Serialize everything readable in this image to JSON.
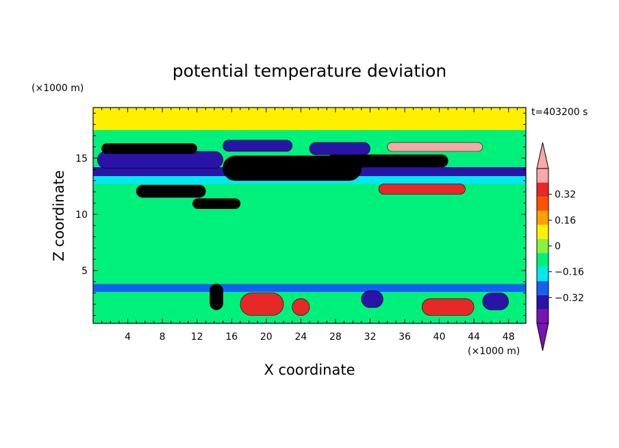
{
  "chart_data": {
    "type": "heatmap",
    "title": "potential temperature deviation",
    "xlabel": "X coordinate",
    "ylabel": "Z coordinate",
    "x_unit": "(×1000 m)",
    "y_unit": "(×1000 m)",
    "time_label": "t=403200 s",
    "xlim": [
      0,
      50
    ],
    "ylim": [
      0.3,
      19.5
    ],
    "x_ticks": [
      4,
      8,
      12,
      16,
      20,
      24,
      28,
      32,
      36,
      40,
      44,
      48
    ],
    "y_ticks": [
      5,
      10,
      15
    ],
    "background_color": "#00f07c",
    "colorbar": {
      "levels": [
        -0.48,
        -0.4,
        -0.32,
        -0.24,
        -0.16,
        -0.08,
        0,
        0.08,
        0.16,
        0.24,
        0.32,
        0.4,
        0.48
      ],
      "colors": [
        "#7814b4",
        "#2a14a8",
        "#1460f0",
        "#00e8f0",
        "#00f07c",
        "#8cf03c",
        "#fff000",
        "#ffa000",
        "#ff5000",
        "#e82828",
        "#f8a8a8"
      ],
      "under_color": "#7814b4",
      "over_color": "#f8a8a8",
      "labels": [
        {
          "text": "0.32",
          "value": 0.32
        },
        {
          "text": "0.16",
          "value": 0.16
        },
        {
          "text": "0",
          "value": 0
        },
        {
          "text": "−0.16",
          "value": -0.16
        },
        {
          "text": "−0.32",
          "value": -0.32
        }
      ]
    },
    "features": [
      {
        "name": "band-light-green-top",
        "x": [
          0,
          50
        ],
        "z": [
          17.5,
          19.5
        ],
        "value": 0.04
      },
      {
        "name": "band-purple-14",
        "x": [
          0,
          50
        ],
        "z": [
          13.4,
          14.2
        ],
        "value": -0.36
      },
      {
        "name": "band-cyan-13",
        "x": [
          0,
          50
        ],
        "z": [
          12.7,
          13.4
        ],
        "value": -0.2
      },
      {
        "name": "cold-blob-8-15",
        "x": [
          0.5,
          15
        ],
        "z": [
          14.1,
          15.6
        ],
        "value": -0.4
      },
      {
        "name": "warm-blob-14",
        "x": [
          15,
          31
        ],
        "z": [
          13.0,
          15.2
        ],
        "value": 0.44
      },
      {
        "name": "warm-blob-16",
        "x": [
          1,
          12
        ],
        "z": [
          15.4,
          16.3
        ],
        "value": 0.4
      },
      {
        "name": "warm-blob-15-east",
        "x": [
          27,
          41
        ],
        "z": [
          14.2,
          15.3
        ],
        "value": 0.44
      },
      {
        "name": "warm-blob-16-east",
        "x": [
          34,
          45
        ],
        "z": [
          15.6,
          16.4
        ],
        "value": 0.36
      },
      {
        "name": "cold-blob-16-mid",
        "x": [
          15,
          23
        ],
        "z": [
          15.6,
          16.6
        ],
        "value": -0.4
      },
      {
        "name": "cold-blob-16-east",
        "x": [
          25,
          32
        ],
        "z": [
          15.3,
          16.4
        ],
        "value": -0.4
      },
      {
        "name": "warm-blob-12",
        "x": [
          5,
          13
        ],
        "z": [
          11.5,
          12.6
        ],
        "value": 0.4
      },
      {
        "name": "warm-blob-10",
        "x": [
          11.5,
          17
        ],
        "z": [
          10.5,
          11.4
        ],
        "value": 0.4
      },
      {
        "name": "warm-blob-12-east",
        "x": [
          33,
          43
        ],
        "z": [
          11.8,
          12.7
        ],
        "value": 0.3
      },
      {
        "name": "cold-band-3.5",
        "x": [
          0,
          50
        ],
        "z": [
          3.1,
          3.8
        ],
        "value": -0.3
      },
      {
        "name": "warm-pillar-14",
        "x": [
          13.5,
          15
        ],
        "z": [
          1.5,
          3.8
        ],
        "value": 0.44
      },
      {
        "name": "warm-blob-2-20",
        "x": [
          17,
          22
        ],
        "z": [
          1.0,
          3.0
        ],
        "value": 0.24
      },
      {
        "name": "warm-blob-2-24",
        "x": [
          23,
          25
        ],
        "z": [
          1.0,
          2.5
        ],
        "value": 0.24
      },
      {
        "name": "warm-blob-2-41",
        "x": [
          38,
          44
        ],
        "z": [
          1.0,
          2.5
        ],
        "value": 0.24
      },
      {
        "name": "cold-blob-2-32",
        "x": [
          31,
          33.5
        ],
        "z": [
          1.7,
          3.2
        ],
        "value": -0.36
      },
      {
        "name": "cold-blob-2-47",
        "x": [
          45,
          48
        ],
        "z": [
          1.5,
          3.0
        ],
        "value": -0.36
      }
    ]
  }
}
